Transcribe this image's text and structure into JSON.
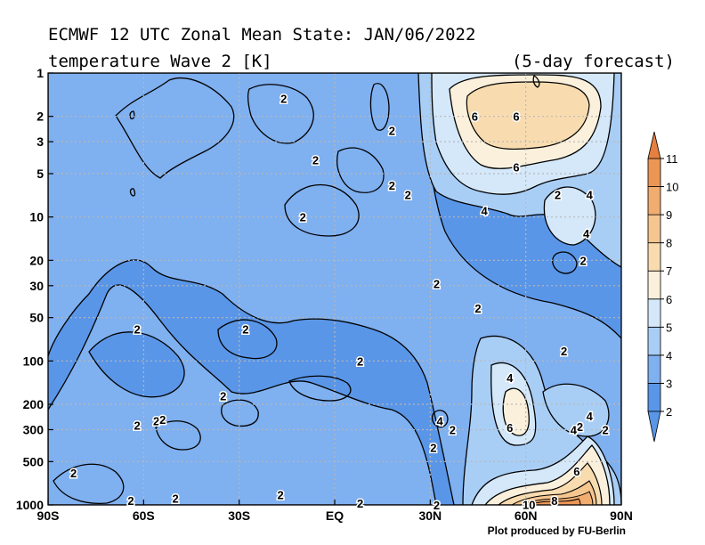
{
  "header": {
    "title_line1": "ECMWF 12 UTC Zonal Mean State: JAN/06/2022",
    "title_line2": "temperature Wave 2 [K]",
    "forecast": "(5-day forecast)"
  },
  "credit": "Plot produced by FU-Berlin",
  "chart_data": {
    "type": "contour",
    "x_ticks": [
      "90S",
      "60S",
      "30S",
      "EQ",
      "30N",
      "60N",
      "90N"
    ],
    "y_ticks": [
      "1",
      "2",
      "3",
      "5",
      "10",
      "20",
      "30",
      "50",
      "100",
      "200",
      "300",
      "500",
      "1000"
    ],
    "y_scale": "log",
    "y_range": [
      1000,
      1
    ],
    "grid": true,
    "colorbar": {
      "levels": [
        "2",
        "3",
        "4",
        "5",
        "6",
        "7",
        "8",
        "9",
        "10",
        "11"
      ],
      "colors": [
        "#5a96e8",
        "#7fb0f0",
        "#a9cef6",
        "#d4e8fa",
        "#fbf0dc",
        "#f8dcb0",
        "#f5c690",
        "#f1ad70",
        "#ec9656",
        "#e58040"
      ]
    },
    "contour_labels": [
      {
        "text": "2",
        "lat": -16,
        "p": 1.5
      },
      {
        "text": "2",
        "lat": 18,
        "p": 2.5
      },
      {
        "text": "2",
        "lat": -6,
        "p": 4
      },
      {
        "text": "2",
        "lat": 18,
        "p": 6
      },
      {
        "text": "2",
        "lat": 23,
        "p": 7
      },
      {
        "text": "2",
        "lat": -10,
        "p": 10
      },
      {
        "text": "2",
        "lat": 32,
        "p": 29
      },
      {
        "text": "2",
        "lat": 45,
        "p": 43
      },
      {
        "text": "2",
        "lat": -62,
        "p": 60
      },
      {
        "text": "2",
        "lat": -28,
        "p": 60
      },
      {
        "text": "2",
        "lat": 8,
        "p": 100
      },
      {
        "text": "2",
        "lat": -35,
        "p": 175
      },
      {
        "text": "2",
        "lat": -62,
        "p": 280
      },
      {
        "text": "2",
        "lat": -56,
        "p": 260
      },
      {
        "text": "2",
        "lat": -54,
        "p": 255
      },
      {
        "text": "2",
        "lat": -82,
        "p": 600
      },
      {
        "text": "2",
        "lat": -64,
        "p": 930
      },
      {
        "text": "2",
        "lat": -50,
        "p": 900
      },
      {
        "text": "2",
        "lat": -17,
        "p": 850
      },
      {
        "text": "2",
        "lat": 8,
        "p": 970
      },
      {
        "text": "2",
        "lat": 32,
        "p": 1000
      },
      {
        "text": "2",
        "lat": 31,
        "p": 400
      },
      {
        "text": "2",
        "lat": 37,
        "p": 300
      },
      {
        "text": "2",
        "lat": 70,
        "p": 7
      },
      {
        "text": "2",
        "lat": 78,
        "p": 20
      },
      {
        "text": "2",
        "lat": 72,
        "p": 85
      },
      {
        "text": "2",
        "lat": 85,
        "p": 300
      },
      {
        "text": "2",
        "lat": 77,
        "p": 285
      },
      {
        "text": "4",
        "lat": 47,
        "p": 9
      },
      {
        "text": "4",
        "lat": 80,
        "p": 7
      },
      {
        "text": "4",
        "lat": 79,
        "p": 13
      },
      {
        "text": "4",
        "lat": 55,
        "p": 130
      },
      {
        "text": "4",
        "lat": 33,
        "p": 260
      },
      {
        "text": "4",
        "lat": 75,
        "p": 300
      },
      {
        "text": "4",
        "lat": 80,
        "p": 240
      },
      {
        "text": "6",
        "lat": 44,
        "p": 2
      },
      {
        "text": "6",
        "lat": 57,
        "p": 2
      },
      {
        "text": "6",
        "lat": 57,
        "p": 4.5
      },
      {
        "text": "6",
        "lat": 55,
        "p": 290
      },
      {
        "text": "6",
        "lat": 76,
        "p": 580
      },
      {
        "text": "8",
        "lat": 69,
        "p": 930
      },
      {
        "text": "10",
        "lat": 61,
        "p": 990
      }
    ]
  }
}
